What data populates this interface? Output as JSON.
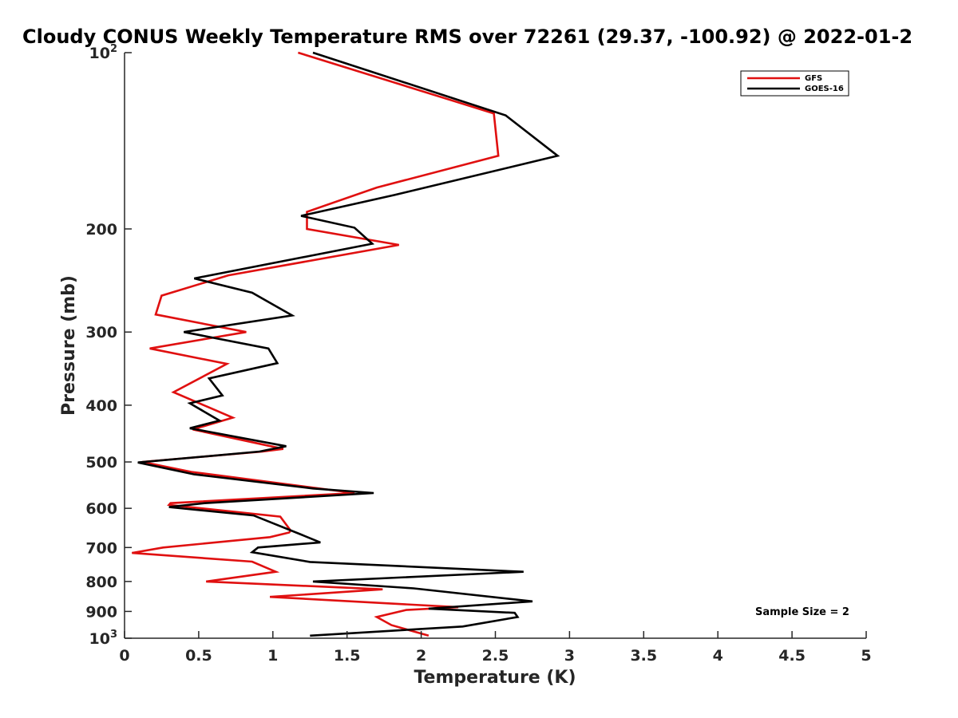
{
  "chart_data": {
    "type": "line",
    "title": "Cloudy CONUS Weekly Temperature RMS over 72261 (29.37, -100.92) @ 2022-01-2",
    "xlabel": "Temperature (K)",
    "ylabel": "Pressure (mb)",
    "xlim": [
      0,
      5
    ],
    "ylim": [
      1000,
      100
    ],
    "yscale": "log",
    "y_reversed": true,
    "grid": false,
    "legend_position": "top-right",
    "x_ticks": [
      "0",
      "0.5",
      "1",
      "1.5",
      "2",
      "2.5",
      "3",
      "3.5",
      "4",
      "4.5",
      "5"
    ],
    "y_ticks": [
      {
        "value": 100,
        "base": "10",
        "exp": "2"
      },
      {
        "value": 200,
        "label": "200"
      },
      {
        "value": 300,
        "label": "300"
      },
      {
        "value": 400,
        "label": "400"
      },
      {
        "value": 500,
        "label": "500"
      },
      {
        "value": 600,
        "label": "600"
      },
      {
        "value": 700,
        "label": "700"
      },
      {
        "value": 800,
        "label": "800"
      },
      {
        "value": 900,
        "label": "900"
      },
      {
        "value": 1000,
        "base": "10",
        "exp": "3"
      }
    ],
    "annotation": "Sample Size = 2",
    "series": [
      {
        "name": "GFS",
        "color": "#e01010",
        "points": [
          [
            1.17,
            100
          ],
          [
            2.49,
            127
          ],
          [
            2.52,
            150
          ],
          [
            1.7,
            170
          ],
          [
            1.23,
            187
          ],
          [
            1.23,
            200
          ],
          [
            1.85,
            213
          ],
          [
            0.7,
            240
          ],
          [
            0.25,
            260
          ],
          [
            0.21,
            280
          ],
          [
            0.82,
            300
          ],
          [
            0.17,
            320
          ],
          [
            0.69,
            340
          ],
          [
            0.33,
            380
          ],
          [
            0.73,
            420
          ],
          [
            0.46,
            440
          ],
          [
            1.07,
            475
          ],
          [
            0.93,
            480
          ],
          [
            0.12,
            500
          ],
          [
            0.45,
            520
          ],
          [
            1.55,
            565
          ],
          [
            0.31,
            588
          ],
          [
            0.3,
            592
          ],
          [
            1.05,
            620
          ],
          [
            1.12,
            655
          ],
          [
            1.11,
            660
          ],
          [
            0.98,
            672
          ],
          [
            0.26,
            700
          ],
          [
            0.05,
            715
          ],
          [
            0.86,
            740
          ],
          [
            1.02,
            770
          ],
          [
            0.55,
            800
          ],
          [
            1.74,
            825
          ],
          [
            0.98,
            850
          ],
          [
            2.25,
            885
          ],
          [
            1.9,
            895
          ],
          [
            1.7,
            920
          ],
          [
            1.8,
            950
          ],
          [
            2.05,
            990
          ]
        ]
      },
      {
        "name": "GOES-16",
        "color": "#000000",
        "points": [
          [
            1.27,
            100
          ],
          [
            2.57,
            128
          ],
          [
            2.92,
            150
          ],
          [
            1.82,
            175
          ],
          [
            1.19,
            190
          ],
          [
            1.55,
            199
          ],
          [
            1.67,
            212
          ],
          [
            0.47,
            243
          ],
          [
            0.86,
            257
          ],
          [
            1.13,
            281
          ],
          [
            0.4,
            300
          ],
          [
            0.97,
            320
          ],
          [
            1.03,
            339
          ],
          [
            0.57,
            360
          ],
          [
            0.66,
            385
          ],
          [
            0.44,
            397
          ],
          [
            0.64,
            425
          ],
          [
            0.44,
            438
          ],
          [
            1.09,
            470
          ],
          [
            0.91,
            480
          ],
          [
            0.09,
            501
          ],
          [
            0.47,
            525
          ],
          [
            1.27,
            555
          ],
          [
            1.68,
            565
          ],
          [
            0.54,
            588
          ],
          [
            0.3,
            597
          ],
          [
            0.87,
            617
          ],
          [
            1.19,
            665
          ],
          [
            1.32,
            686
          ],
          [
            0.9,
            700
          ],
          [
            0.86,
            713
          ],
          [
            1.25,
            741
          ],
          [
            2.69,
            770
          ],
          [
            1.27,
            800
          ],
          [
            1.95,
            822
          ],
          [
            2.75,
            865
          ],
          [
            2.05,
            890
          ],
          [
            2.63,
            905
          ],
          [
            2.65,
            920
          ],
          [
            2.28,
            955
          ],
          [
            1.25,
            990
          ]
        ]
      }
    ]
  }
}
